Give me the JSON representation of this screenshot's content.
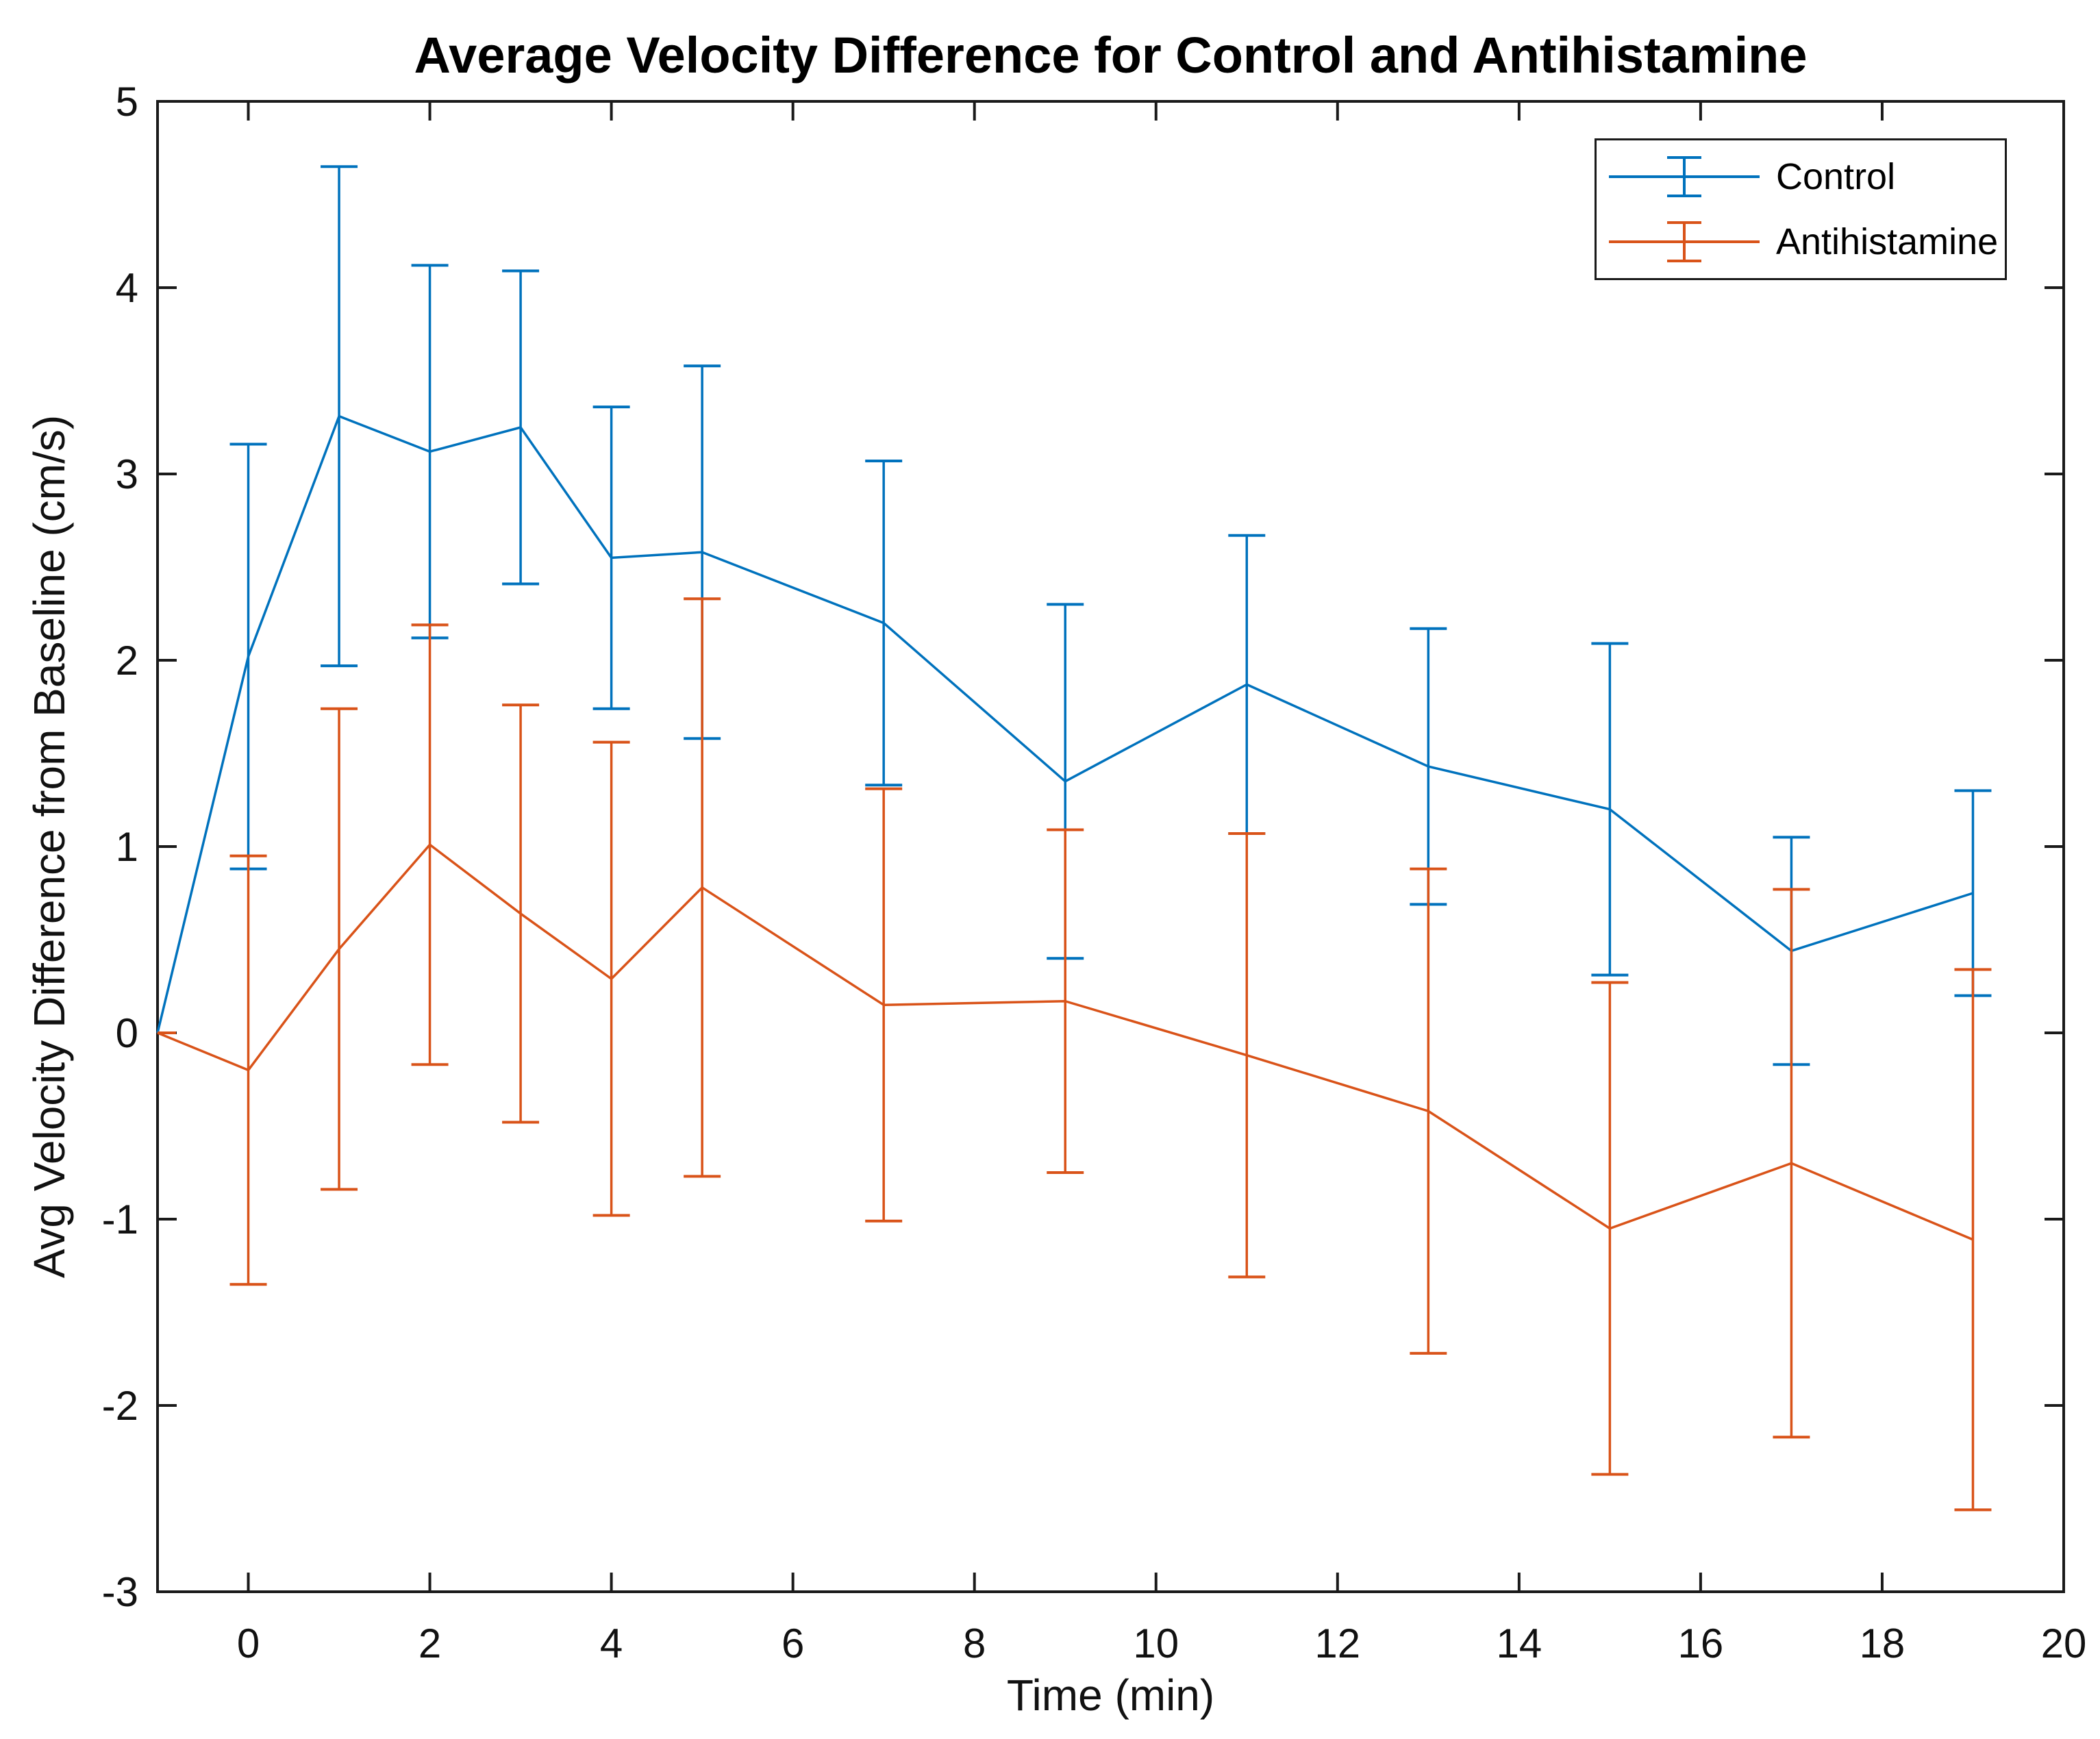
{
  "figure": {
    "title": "Average Velocity Difference for Control and Antihistamine",
    "xlabel": "Time (min)",
    "ylabel": "Avg Velocity Difference from Baseline (cm/s)"
  },
  "legend": {
    "items": [
      {
        "label": "Control",
        "color": "#0072BD"
      },
      {
        "label": "Antihistamine",
        "color": "#D95319"
      }
    ]
  },
  "chart_data": {
    "type": "line",
    "title": "Average Velocity Difference for Control and Antihistamine",
    "xlabel": "Time (min)",
    "ylabel": "Avg Velocity Difference from Baseline (cm/s)",
    "error_bars": true,
    "grid": false,
    "legend_position": "top-right",
    "xlim": [
      -1,
      20
    ],
    "ylim": [
      -3,
      5
    ],
    "xticks": [
      0,
      2,
      4,
      6,
      8,
      10,
      12,
      14,
      16,
      18,
      20
    ],
    "yticks": [
      -3,
      -2,
      -1,
      0,
      1,
      2,
      3,
      4,
      5
    ],
    "x": [
      -1,
      0,
      1,
      2,
      3,
      4,
      5,
      7,
      9,
      11,
      13,
      15,
      17,
      19
    ],
    "series": [
      {
        "name": "Control",
        "color": "#0072BD",
        "values": [
          0,
          2.02,
          3.31,
          3.12,
          3.25,
          2.55,
          2.58,
          2.2,
          1.35,
          1.87,
          1.43,
          1.2,
          0.44,
          0.75
        ],
        "errors": [
          0,
          1.14,
          1.34,
          1.0,
          0.84,
          0.81,
          1.0,
          0.87,
          0.95,
          0.8,
          0.74,
          0.89,
          0.61,
          0.55
        ]
      },
      {
        "name": "Antihistamine",
        "color": "#D95319",
        "values": [
          0,
          -0.2,
          0.45,
          1.01,
          0.64,
          0.29,
          0.78,
          0.15,
          0.17,
          -0.12,
          -0.42,
          -1.05,
          -0.7,
          -1.11
        ],
        "errors": [
          0,
          1.15,
          1.29,
          1.18,
          1.12,
          1.27,
          1.55,
          1.16,
          0.92,
          1.19,
          1.3,
          1.32,
          1.47,
          1.45
        ]
      }
    ]
  }
}
